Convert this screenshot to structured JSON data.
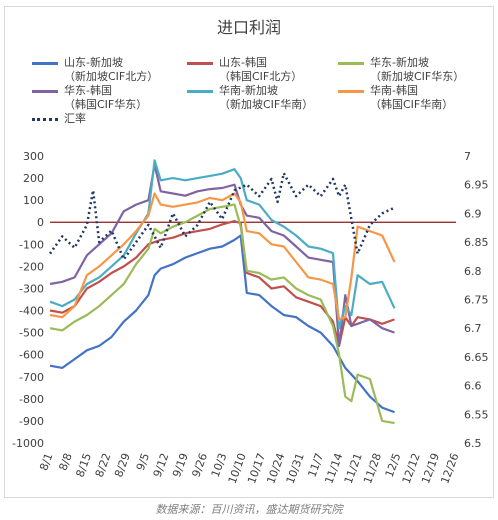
{
  "chart_data": {
    "type": "line",
    "title": "进口利润",
    "source": "数据来源：百川资讯，盛达期货研究院",
    "x_tick_labels": [
      "8/1",
      "8/8",
      "8/15",
      "8/22",
      "8/29",
      "9/5",
      "9/12",
      "9/19",
      "9/26",
      "10/3",
      "10/10",
      "10/17",
      "10/24",
      "10/31",
      "11/7",
      "11/14",
      "11/21",
      "11/28",
      "12/5",
      "12/12",
      "12/19",
      "12/26"
    ],
    "y_left": {
      "min": -1000,
      "max": 300,
      "step": 100,
      "ticks": [
        "300",
        "200",
        "100",
        "0",
        "-100",
        "-200",
        "-300",
        "-400",
        "-500",
        "-600",
        "-700",
        "-800",
        "-900",
        "-1000"
      ]
    },
    "y_right": {
      "min": 6.5,
      "max": 7.0,
      "step": 0.05,
      "ticks": [
        "7",
        "6.95",
        "6.9",
        "6.85",
        "6.8",
        "6.75",
        "6.7",
        "6.65",
        "6.6",
        "6.55",
        "6.5"
      ]
    },
    "zero_line_color": "#8b1a1a",
    "series": [
      {
        "name": "山东-新加坡",
        "sub": "（新加坡CIF北方）",
        "color": "#4472c4",
        "axis": "left",
        "points": [
          [
            0,
            -650
          ],
          [
            2,
            -660
          ],
          [
            4,
            -620
          ],
          [
            6,
            -580
          ],
          [
            8,
            -560
          ],
          [
            10,
            -520
          ],
          [
            12,
            -450
          ],
          [
            14,
            -400
          ],
          [
            16,
            -330
          ],
          [
            17,
            -240
          ],
          [
            18,
            -210
          ],
          [
            20,
            -190
          ],
          [
            22,
            -160
          ],
          [
            24,
            -140
          ],
          [
            26,
            -120
          ],
          [
            28,
            -110
          ],
          [
            30,
            -80
          ],
          [
            31,
            -60
          ],
          [
            32,
            -320
          ],
          [
            34,
            -330
          ],
          [
            36,
            -380
          ],
          [
            38,
            -420
          ],
          [
            40,
            -430
          ],
          [
            42,
            -470
          ],
          [
            44,
            -500
          ],
          [
            46,
            -560
          ],
          [
            48,
            -660
          ],
          [
            50,
            -720
          ],
          [
            52,
            -790
          ],
          [
            54,
            -840
          ],
          [
            55,
            -850
          ],
          [
            56,
            -860
          ]
        ]
      },
      {
        "name": "山东-韩国",
        "sub": "（韩国CIF北方）",
        "color": "#c0504d",
        "axis": "left",
        "points": [
          [
            0,
            -400
          ],
          [
            2,
            -410
          ],
          [
            4,
            -380
          ],
          [
            6,
            -300
          ],
          [
            8,
            -270
          ],
          [
            10,
            -230
          ],
          [
            12,
            -200
          ],
          [
            14,
            -160
          ],
          [
            16,
            -100
          ],
          [
            18,
            -80
          ],
          [
            20,
            -70
          ],
          [
            22,
            -50
          ],
          [
            24,
            -40
          ],
          [
            26,
            -30
          ],
          [
            28,
            -10
          ],
          [
            30,
            5
          ],
          [
            31,
            -5
          ],
          [
            32,
            -230
          ],
          [
            34,
            -250
          ],
          [
            36,
            -300
          ],
          [
            38,
            -290
          ],
          [
            40,
            -340
          ],
          [
            42,
            -360
          ],
          [
            44,
            -380
          ],
          [
            46,
            -450
          ],
          [
            47,
            -560
          ],
          [
            48,
            -430
          ],
          [
            49,
            -470
          ],
          [
            50,
            -430
          ],
          [
            52,
            -440
          ],
          [
            54,
            -460
          ],
          [
            56,
            -440
          ]
        ]
      },
      {
        "name": "华东-新加坡",
        "sub": "（新加坡CIF华东）",
        "color": "#9bbb59",
        "axis": "left",
        "points": [
          [
            0,
            -480
          ],
          [
            2,
            -490
          ],
          [
            4,
            -450
          ],
          [
            6,
            -420
          ],
          [
            8,
            -380
          ],
          [
            10,
            -330
          ],
          [
            12,
            -280
          ],
          [
            14,
            -190
          ],
          [
            16,
            -120
          ],
          [
            17,
            -30
          ],
          [
            18,
            -50
          ],
          [
            20,
            -20
          ],
          [
            22,
            0
          ],
          [
            24,
            30
          ],
          [
            26,
            60
          ],
          [
            28,
            70
          ],
          [
            30,
            80
          ],
          [
            31,
            -20
          ],
          [
            32,
            -220
          ],
          [
            34,
            -230
          ],
          [
            36,
            -260
          ],
          [
            38,
            -250
          ],
          [
            40,
            -300
          ],
          [
            42,
            -330
          ],
          [
            44,
            -350
          ],
          [
            46,
            -470
          ],
          [
            47,
            -600
          ],
          [
            48,
            -790
          ],
          [
            49,
            -810
          ],
          [
            50,
            -690
          ],
          [
            52,
            -710
          ],
          [
            54,
            -900
          ],
          [
            56,
            -910
          ]
        ]
      },
      {
        "name": "华东-韩国",
        "sub": "（韩国CIF华东）",
        "color": "#8064a2",
        "axis": "left",
        "points": [
          [
            0,
            -280
          ],
          [
            2,
            -270
          ],
          [
            4,
            -250
          ],
          [
            6,
            -150
          ],
          [
            8,
            -100
          ],
          [
            10,
            -50
          ],
          [
            12,
            50
          ],
          [
            14,
            80
          ],
          [
            16,
            100
          ],
          [
            17,
            260
          ],
          [
            18,
            140
          ],
          [
            20,
            130
          ],
          [
            22,
            120
          ],
          [
            24,
            140
          ],
          [
            26,
            150
          ],
          [
            28,
            155
          ],
          [
            30,
            170
          ],
          [
            31,
            80
          ],
          [
            32,
            30
          ],
          [
            34,
            20
          ],
          [
            36,
            -40
          ],
          [
            38,
            -60
          ],
          [
            40,
            -110
          ],
          [
            42,
            -160
          ],
          [
            44,
            -170
          ],
          [
            46,
            -180
          ],
          [
            47,
            -560
          ],
          [
            48,
            -330
          ],
          [
            49,
            -470
          ],
          [
            50,
            -460
          ],
          [
            52,
            -440
          ],
          [
            54,
            -480
          ],
          [
            56,
            -500
          ]
        ]
      },
      {
        "name": "华南-新加坡",
        "sub": "（新加坡CIF华南）",
        "color": "#4bacc6",
        "axis": "left",
        "points": [
          [
            0,
            -360
          ],
          [
            2,
            -380
          ],
          [
            4,
            -350
          ],
          [
            6,
            -280
          ],
          [
            8,
            -250
          ],
          [
            10,
            -200
          ],
          [
            12,
            -150
          ],
          [
            14,
            -50
          ],
          [
            16,
            40
          ],
          [
            17,
            280
          ],
          [
            18,
            190
          ],
          [
            20,
            200
          ],
          [
            22,
            190
          ],
          [
            24,
            200
          ],
          [
            26,
            210
          ],
          [
            28,
            220
          ],
          [
            30,
            240
          ],
          [
            31,
            200
          ],
          [
            32,
            100
          ],
          [
            34,
            80
          ],
          [
            36,
            10
          ],
          [
            38,
            -20
          ],
          [
            40,
            -60
          ],
          [
            42,
            -110
          ],
          [
            44,
            -120
          ],
          [
            46,
            -140
          ],
          [
            47,
            -480
          ],
          [
            48,
            -380
          ],
          [
            49,
            -420
          ],
          [
            50,
            -240
          ],
          [
            52,
            -280
          ],
          [
            54,
            -270
          ],
          [
            56,
            -390
          ]
        ]
      },
      {
        "name": "华南-韩国",
        "sub": "（韩国CIF华南）",
        "color": "#f79646",
        "axis": "left",
        "points": [
          [
            0,
            -420
          ],
          [
            2,
            -430
          ],
          [
            4,
            -380
          ],
          [
            6,
            -240
          ],
          [
            8,
            -200
          ],
          [
            10,
            -150
          ],
          [
            12,
            -100
          ],
          [
            14,
            -40
          ],
          [
            16,
            30
          ],
          [
            17,
            130
          ],
          [
            18,
            80
          ],
          [
            20,
            70
          ],
          [
            22,
            80
          ],
          [
            24,
            90
          ],
          [
            26,
            110
          ],
          [
            28,
            100
          ],
          [
            30,
            130
          ],
          [
            31,
            90
          ],
          [
            32,
            -40
          ],
          [
            34,
            -50
          ],
          [
            36,
            -100
          ],
          [
            38,
            -110
          ],
          [
            40,
            -180
          ],
          [
            42,
            -250
          ],
          [
            44,
            -260
          ],
          [
            46,
            -280
          ],
          [
            47,
            -440
          ],
          [
            48,
            -430
          ],
          [
            49,
            -250
          ],
          [
            50,
            -20
          ],
          [
            52,
            -40
          ],
          [
            54,
            -60
          ],
          [
            56,
            -180
          ]
        ]
      },
      {
        "name": "汇率",
        "sub": "",
        "color": "#1f3864",
        "axis": "right",
        "dash": true,
        "points": [
          [
            0,
            6.83
          ],
          [
            2,
            6.86
          ],
          [
            4,
            6.84
          ],
          [
            6,
            6.88
          ],
          [
            7,
            6.94
          ],
          [
            8,
            6.85
          ],
          [
            10,
            6.87
          ],
          [
            12,
            6.82
          ],
          [
            14,
            6.85
          ],
          [
            16,
            6.88
          ],
          [
            18,
            6.84
          ],
          [
            20,
            6.9
          ],
          [
            22,
            6.86
          ],
          [
            24,
            6.88
          ],
          [
            26,
            6.92
          ],
          [
            28,
            6.89
          ],
          [
            30,
            6.94
          ],
          [
            32,
            6.95
          ],
          [
            34,
            6.93
          ],
          [
            36,
            6.96
          ],
          [
            37,
            6.92
          ],
          [
            38,
            6.97
          ],
          [
            40,
            6.93
          ],
          [
            42,
            6.95
          ],
          [
            44,
            6.93
          ],
          [
            46,
            6.96
          ],
          [
            47,
            6.93
          ],
          [
            48,
            6.95
          ],
          [
            49,
            6.89
          ],
          [
            50,
            6.83
          ],
          [
            52,
            6.88
          ],
          [
            54,
            6.9
          ],
          [
            56,
            6.91
          ]
        ]
      }
    ],
    "x_index_max": 66
  }
}
